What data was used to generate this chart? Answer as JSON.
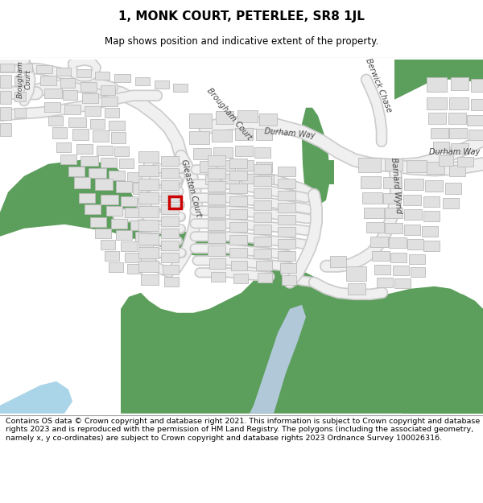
{
  "title": "1, MONK COURT, PETERLEE, SR8 1JL",
  "subtitle": "Map shows position and indicative extent of the property.",
  "footer": "Contains OS data © Crown copyright and database right 2021. This information is subject to Crown copyright and database rights 2023 and is reproduced with the permission of HM Land Registry. The polygons (including the associated geometry, namely x, y co-ordinates) are subject to Crown copyright and database rights 2023 Ordnance Survey 100026316.",
  "map_bg": "#ffffff",
  "road_color": "#f0f0f0",
  "road_outline": "#cccccc",
  "building_fill": "#e0e0e0",
  "building_edge": "#bbbbbb",
  "green_fill": "#5c9e5c",
  "water_fill": "#aad4e8",
  "highlight_edge": "#cc0000",
  "highlight_lw": 2.0,
  "title_fontsize": 11,
  "subtitle_fontsize": 8.5,
  "footer_fontsize": 6.8,
  "label_fontsize": 7.0,
  "label_color": "#444444"
}
